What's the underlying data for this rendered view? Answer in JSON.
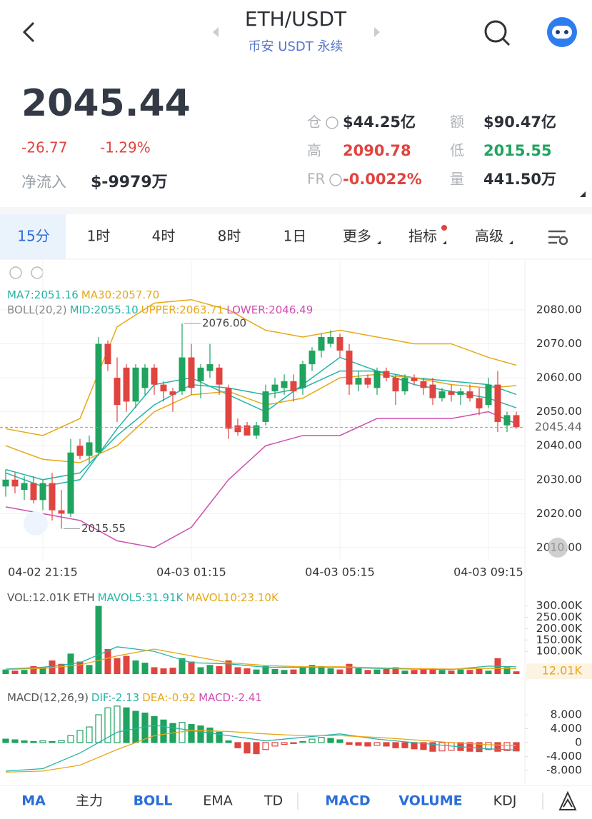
{
  "header": {
    "title": "ETH/USDT",
    "subtitle": "币安 USDT 永续"
  },
  "ticker": {
    "price": "2045.44",
    "change": "-26.77",
    "change_pct": "-1.29%",
    "net_inflow_label": "净流入",
    "net_inflow": "$-9979万"
  },
  "stats": [
    {
      "label": "仓",
      "value": "$44.25亿",
      "color": "#2b2f36"
    },
    {
      "label": "额",
      "value": "$90.47亿",
      "color": "#2b2f36"
    },
    {
      "label": "高",
      "value": "2090.78",
      "color": "#e0443f"
    },
    {
      "label": "低",
      "value": "2015.55",
      "color": "#1fa35f"
    },
    {
      "label": "FR",
      "value": "-0.0022%",
      "color": "#e0443f"
    },
    {
      "label": "量",
      "value": "441.50万",
      "color": "#2b2f36"
    }
  ],
  "timeframes": [
    {
      "label": "15分",
      "active": true
    },
    {
      "label": "1时",
      "active": false
    },
    {
      "label": "4时",
      "active": false
    },
    {
      "label": "8时",
      "active": false
    },
    {
      "label": "1日",
      "active": false
    },
    {
      "label": "更多",
      "active": false
    },
    {
      "label": "指标",
      "active": false
    },
    {
      "label": "高级",
      "active": false
    }
  ],
  "chart_data": [
    {
      "type": "candlestick",
      "up_color": "#1fa35f",
      "down_color": "#e0443f",
      "grid": true,
      "categories": [
        null,
        null,
        null,
        null,
        "04-02 21:15",
        null,
        null,
        null,
        null,
        null,
        null,
        null,
        null,
        null,
        null,
        null,
        null,
        null,
        null,
        null,
        "04-03 01:15",
        null,
        null,
        null,
        null,
        null,
        null,
        null,
        null,
        null,
        null,
        null,
        null,
        null,
        null,
        null,
        "04-03 05:15",
        null,
        null,
        null,
        null,
        null,
        null,
        null,
        null,
        null,
        null,
        null,
        null,
        null,
        null,
        null,
        "04-03 09:15",
        null,
        null,
        null
      ],
      "open": [
        2028,
        2030,
        2027,
        2029,
        2024,
        2029,
        2021,
        2020,
        2040,
        2037,
        2038,
        2070,
        2060,
        2063,
        2053,
        2057,
        2063,
        2058,
        2056,
        2056,
        2066,
        2059,
        2062,
        2063,
        2057,
        2046,
        2046,
        2043,
        2047,
        2056,
        2057,
        2059,
        2057,
        2064,
        2068,
        2070,
        2072,
        2068,
        2058,
        2060,
        2057,
        2062,
        2060,
        2056,
        2060,
        2059,
        2058,
        2054,
        2056,
        2055,
        2056,
        2054,
        2052,
        2058,
        2046,
        2049
      ],
      "high": [
        2033,
        2032,
        2031,
        2031,
        2030,
        2032,
        2027,
        2042,
        2042,
        2043,
        2072,
        2071,
        2066,
        2064,
        2064,
        2064,
        2064,
        2059,
        2057,
        2076,
        2070,
        2064,
        2070,
        2064,
        2058,
        2048,
        2047,
        2047,
        2058,
        2060,
        2061,
        2061,
        2065,
        2069,
        2073,
        2074,
        2073,
        2070,
        2062,
        2061,
        2063,
        2063,
        2061,
        2061,
        2061,
        2060,
        2060,
        2057,
        2058,
        2057,
        2058,
        2057,
        2060,
        2062,
        2050,
        2050
      ],
      "low": [
        2025,
        2026,
        2024,
        2023,
        2021,
        2018,
        2015.55,
        2019,
        2036,
        2035,
        2037,
        2062,
        2047,
        2050,
        2051,
        2055,
        2055,
        2053,
        2050,
        2055,
        2055,
        2054,
        2060,
        2055,
        2042,
        2043,
        2043,
        2042,
        2046,
        2054,
        2055,
        2053,
        2055,
        2062,
        2066,
        2069,
        2066,
        2055,
        2056,
        2057,
        2055,
        2059,
        2052,
        2055,
        2058,
        2055,
        2052,
        2053,
        2053,
        2052,
        2053,
        2049,
        2051,
        2044,
        2044,
        2045
      ],
      "close": [
        2030,
        2028,
        2029,
        2024,
        2029,
        2021,
        2020,
        2038,
        2037,
        2041,
        2070,
        2064,
        2052,
        2053,
        2063,
        2063,
        2058,
        2056,
        2055,
        2066,
        2057,
        2063,
        2064,
        2058,
        2045,
        2044,
        2043,
        2046,
        2056,
        2058,
        2059,
        2056,
        2064,
        2068,
        2072,
        2072,
        2068,
        2058,
        2060,
        2058,
        2062,
        2060,
        2056,
        2060,
        2059,
        2057,
        2054,
        2056,
        2055,
        2056,
        2054,
        2051,
        2058,
        2047,
        2049,
        2045.44
      ],
      "ylim": [
        2006.2,
        2094.5
      ],
      "yticks": [
        {
          "value": 2080,
          "label": "2080.00"
        },
        {
          "value": 2070,
          "label": "2070.00"
        },
        {
          "value": 2060,
          "label": "2060.00"
        },
        {
          "value": 2050,
          "label": "2050.00"
        },
        {
          "value": 2040,
          "label": "2040.00"
        },
        {
          "value": 2030,
          "label": "2030.00"
        },
        {
          "value": 2020,
          "label": "2020.00"
        },
        {
          "value": 2010,
          "label": "2010.00"
        }
      ],
      "ma_lines": [
        {
          "name": "MA7:2051.16",
          "color": "#27b3a6",
          "x": [
            0,
            4,
            8,
            12,
            16,
            20,
            24,
            28,
            32,
            36,
            40,
            44,
            48,
            52,
            55
          ],
          "values": [
            2032,
            2028,
            2030,
            2045,
            2058,
            2060,
            2055,
            2050,
            2058,
            2066,
            2062,
            2058,
            2056,
            2054,
            2051.16
          ]
        },
        {
          "name": "MA30:2057.70",
          "color": "#e6a817",
          "x": [
            0,
            4,
            8,
            12,
            16,
            20,
            24,
            28,
            32,
            36,
            40,
            44,
            48,
            52,
            55
          ],
          "values": [
            2040,
            2036,
            2035,
            2040,
            2050,
            2055,
            2056,
            2052,
            2054,
            2060,
            2061,
            2060,
            2058,
            2057,
            2057.7
          ]
        }
      ],
      "indicator": "BOLL(20,2)",
      "boll_lines": [
        {
          "name": "MID:2055.10",
          "color": "#27b3a6",
          "x": [
            0,
            4,
            8,
            12,
            16,
            20,
            24,
            28,
            32,
            36,
            40,
            44,
            48,
            52,
            55
          ],
          "values": [
            2033,
            2030,
            2032,
            2043,
            2052,
            2058,
            2057,
            2055,
            2057,
            2062,
            2062,
            2060,
            2059,
            2058,
            2055.1
          ]
        },
        {
          "name": "UPPER:2063.71",
          "color": "#e6a817",
          "x": [
            0,
            4,
            8,
            12,
            16,
            20,
            24,
            28,
            32,
            36,
            40,
            44,
            48,
            52,
            55
          ],
          "values": [
            2045,
            2043,
            2048,
            2075,
            2082,
            2083,
            2080,
            2074,
            2072,
            2074,
            2072,
            2070,
            2070,
            2066,
            2063.71
          ]
        },
        {
          "name": "LOWER:2046.49",
          "color": "#cf4fb0",
          "x": [
            0,
            4,
            8,
            12,
            16,
            20,
            24,
            28,
            32,
            36,
            40,
            44,
            48,
            52,
            55
          ],
          "values": [
            2022,
            2020,
            2018,
            2012,
            2010,
            2016,
            2030,
            2040,
            2043,
            2043,
            2048,
            2048,
            2048,
            2050,
            2046.49
          ]
        }
      ],
      "annotations": [
        {
          "value": 2076,
          "label": "2076.00"
        },
        {
          "value": 2015.55,
          "label": "2015.55"
        },
        {
          "value": 2045.44,
          "label": "2045.44"
        }
      ]
    },
    {
      "type": "volume",
      "name": "VOL:12.01K ETH",
      "ylim": [
        0,
        390000
      ],
      "yticks": [
        {
          "value": 300000,
          "label": "300.00K"
        },
        {
          "value": 250000,
          "label": "250.00K"
        },
        {
          "value": 200000,
          "label": "200.00K"
        },
        {
          "value": 150000,
          "label": "150.00K"
        },
        {
          "value": 100000,
          "label": "100.00K"
        }
      ],
      "values": [
        20000,
        15000,
        18000,
        35000,
        30000,
        60000,
        45000,
        90000,
        55000,
        40000,
        300000,
        110000,
        70000,
        80000,
        60000,
        50000,
        30000,
        25000,
        28000,
        70000,
        55000,
        30000,
        40000,
        35000,
        60000,
        30000,
        25000,
        20000,
        35000,
        22000,
        18000,
        20000,
        30000,
        40000,
        35000,
        25000,
        20000,
        45000,
        25000,
        18000,
        20000,
        22000,
        30000,
        15000,
        18000,
        20000,
        25000,
        18000,
        15000,
        20000,
        18000,
        22000,
        15000,
        70000,
        30000,
        12010
      ],
      "series": [
        {
          "name": "MAVOL5:31.91K",
          "color": "#27b3a6",
          "x": [
            0,
            4,
            8,
            12,
            16,
            20,
            24,
            28,
            32,
            36,
            40,
            44,
            48,
            52,
            55
          ],
          "values": [
            22000,
            30000,
            50000,
            120000,
            100000,
            50000,
            45000,
            30000,
            30000,
            30000,
            25000,
            22000,
            20000,
            35000,
            31910
          ]
        },
        {
          "name": "MAVOL10:23.10K",
          "color": "#e6a817",
          "x": [
            0,
            4,
            8,
            12,
            16,
            20,
            24,
            28,
            32,
            36,
            40,
            44,
            48,
            52,
            55
          ],
          "values": [
            20000,
            25000,
            40000,
            80000,
            110000,
            80000,
            50000,
            38000,
            32000,
            32000,
            28000,
            24000,
            22000,
            25000,
            23100
          ]
        }
      ],
      "annotations": [
        {
          "value": 12010,
          "label": "12.01K"
        }
      ]
    },
    {
      "type": "macd",
      "indicator": "MACD(12,26,9)",
      "name": "MACD:-2.41",
      "up_color": "#1fa35f",
      "down_color": "#e0443f",
      "ylim": [
        -11.3,
        15.4
      ],
      "yticks": [
        {
          "value": 8,
          "label": "8.000"
        },
        {
          "value": 4,
          "label": "4.000"
        },
        0,
        {
          "value": -4,
          "label": "-4.000"
        },
        {
          "value": -8,
          "label": "-8.000"
        }
      ],
      "values": [
        1,
        0.8,
        0.5,
        0.3,
        0.5,
        0.3,
        0.6,
        2,
        3.5,
        4.5,
        8,
        10,
        10.5,
        10,
        9,
        8.5,
        7.5,
        6.5,
        5.5,
        5.8,
        5.2,
        4.8,
        4.2,
        3,
        0.5,
        -1.5,
        -3,
        -3.2,
        -2,
        -1,
        -0.5,
        -0.3,
        0.3,
        1,
        1.5,
        1.2,
        0.8,
        -0.5,
        -0.8,
        -1,
        -0.8,
        -1,
        -1.5,
        -1.5,
        -1.8,
        -2,
        -2.5,
        -2.4,
        -2.2,
        -2.3,
        -2.5,
        -2.6,
        -2,
        -2.5,
        -2.3,
        -2.41
      ],
      "series": [
        {
          "name": "DIF:-2.13",
          "color": "#27b3a6",
          "x": [
            0,
            4,
            8,
            12,
            16,
            20,
            24,
            28,
            32,
            36,
            40,
            44,
            48,
            52,
            55
          ],
          "values": [
            -8.2,
            -7.5,
            -3,
            3,
            5,
            3.5,
            2,
            0.5,
            1.5,
            2.5,
            1,
            0,
            -1,
            -1.8,
            -2.13
          ]
        },
        {
          "name": "DEA:-0.92",
          "color": "#e6a817",
          "x": [
            0,
            4,
            8,
            12,
            16,
            20,
            24,
            28,
            32,
            36,
            40,
            44,
            48,
            52,
            55
          ],
          "values": [
            -8.5,
            -8.2,
            -6.5,
            -2,
            2,
            3.5,
            3.2,
            2.5,
            2,
            2,
            1.5,
            0.8,
            0,
            -0.6,
            -0.92
          ]
        }
      ]
    }
  ],
  "indicator_tabs": [
    {
      "label": "MA",
      "active": true
    },
    {
      "label": "主力",
      "active": false
    },
    {
      "label": "BOLL",
      "active": true
    },
    {
      "label": "EMA",
      "active": false
    },
    {
      "label": "TD",
      "active": false
    },
    {
      "label": "MACD",
      "active": true
    },
    {
      "label": "VOLUME",
      "active": true
    },
    {
      "label": "KDJ",
      "active": false
    }
  ]
}
